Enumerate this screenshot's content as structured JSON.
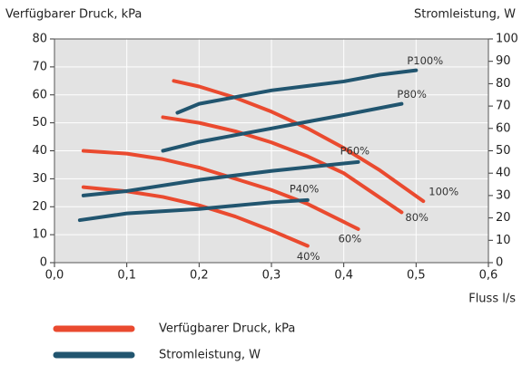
{
  "chart_data": {
    "type": "line",
    "y_label": "Verfügbarer Druck, kPa",
    "y2_label": "Stromleistung, W",
    "x_label": "Fluss l/s",
    "xlim": [
      0,
      0.6
    ],
    "xticks": [
      {
        "value": 0,
        "label": "0,0"
      },
      {
        "value": 0.1,
        "label": "0,1"
      },
      {
        "value": 0.2,
        "label": "0,2"
      },
      {
        "value": 0.3,
        "label": "0,3"
      },
      {
        "value": 0.4,
        "label": "0,4"
      },
      {
        "value": 0.5,
        "label": "0,5"
      },
      {
        "value": 0.6,
        "label": "0,6"
      }
    ],
    "ylim": [
      0,
      80
    ],
    "yticks": [
      0,
      10,
      20,
      30,
      40,
      50,
      60,
      70,
      80
    ],
    "y2lim": [
      0,
      100
    ],
    "y2ticks": [
      0,
      10,
      20,
      30,
      40,
      50,
      60,
      70,
      80,
      90,
      100
    ],
    "grid": true,
    "legend": [
      {
        "name": "Verfügbarer Druck, kPa",
        "color": "#ea4a2f"
      },
      {
        "name": "Stromleistung, W",
        "color": "#21556f"
      }
    ],
    "series": [
      {
        "name": "100%",
        "color": "#ea4a2f",
        "x": [
          0.165,
          0.2,
          0.25,
          0.3,
          0.35,
          0.4,
          0.45,
          0.51
        ],
        "values": [
          65,
          63,
          59,
          54,
          48,
          41,
          33,
          22
        ]
      },
      {
        "name": "80%",
        "color": "#ea4a2f",
        "x": [
          0.15,
          0.2,
          0.25,
          0.3,
          0.35,
          0.4,
          0.48
        ],
        "values": [
          52,
          50,
          47,
          43,
          38,
          32,
          18
        ]
      },
      {
        "name": "60%",
        "color": "#ea4a2f",
        "x": [
          0.04,
          0.1,
          0.15,
          0.2,
          0.25,
          0.3,
          0.35,
          0.42
        ],
        "values": [
          40,
          39,
          37,
          34,
          30,
          26,
          21,
          12
        ]
      },
      {
        "name": "40%",
        "color": "#ea4a2f",
        "x": [
          0.04,
          0.1,
          0.15,
          0.2,
          0.25,
          0.3,
          0.35
        ],
        "values": [
          27,
          25.5,
          23.5,
          20.5,
          16.5,
          11.5,
          6
        ]
      },
      {
        "name": "P100%",
        "color": "#21556f",
        "axis": "y2",
        "x": [
          0.17,
          0.2,
          0.25,
          0.3,
          0.35,
          0.4,
          0.45,
          0.5
        ],
        "values": [
          67,
          71,
          74,
          77,
          79,
          81,
          84,
          86
        ]
      },
      {
        "name": "P80%",
        "color": "#21556f",
        "axis": "y2",
        "x": [
          0.15,
          0.2,
          0.25,
          0.3,
          0.35,
          0.4,
          0.48
        ],
        "values": [
          50,
          54,
          57,
          60,
          63,
          66,
          71
        ]
      },
      {
        "name": "P60%",
        "color": "#21556f",
        "axis": "y2",
        "x": [
          0.04,
          0.1,
          0.2,
          0.3,
          0.42
        ],
        "values": [
          30,
          32,
          37,
          41,
          45
        ]
      },
      {
        "name": "P40%",
        "color": "#21556f",
        "axis": "y2",
        "x": [
          0.035,
          0.1,
          0.2,
          0.3,
          0.35
        ],
        "values": [
          19,
          22,
          24,
          27,
          28
        ]
      }
    ]
  }
}
